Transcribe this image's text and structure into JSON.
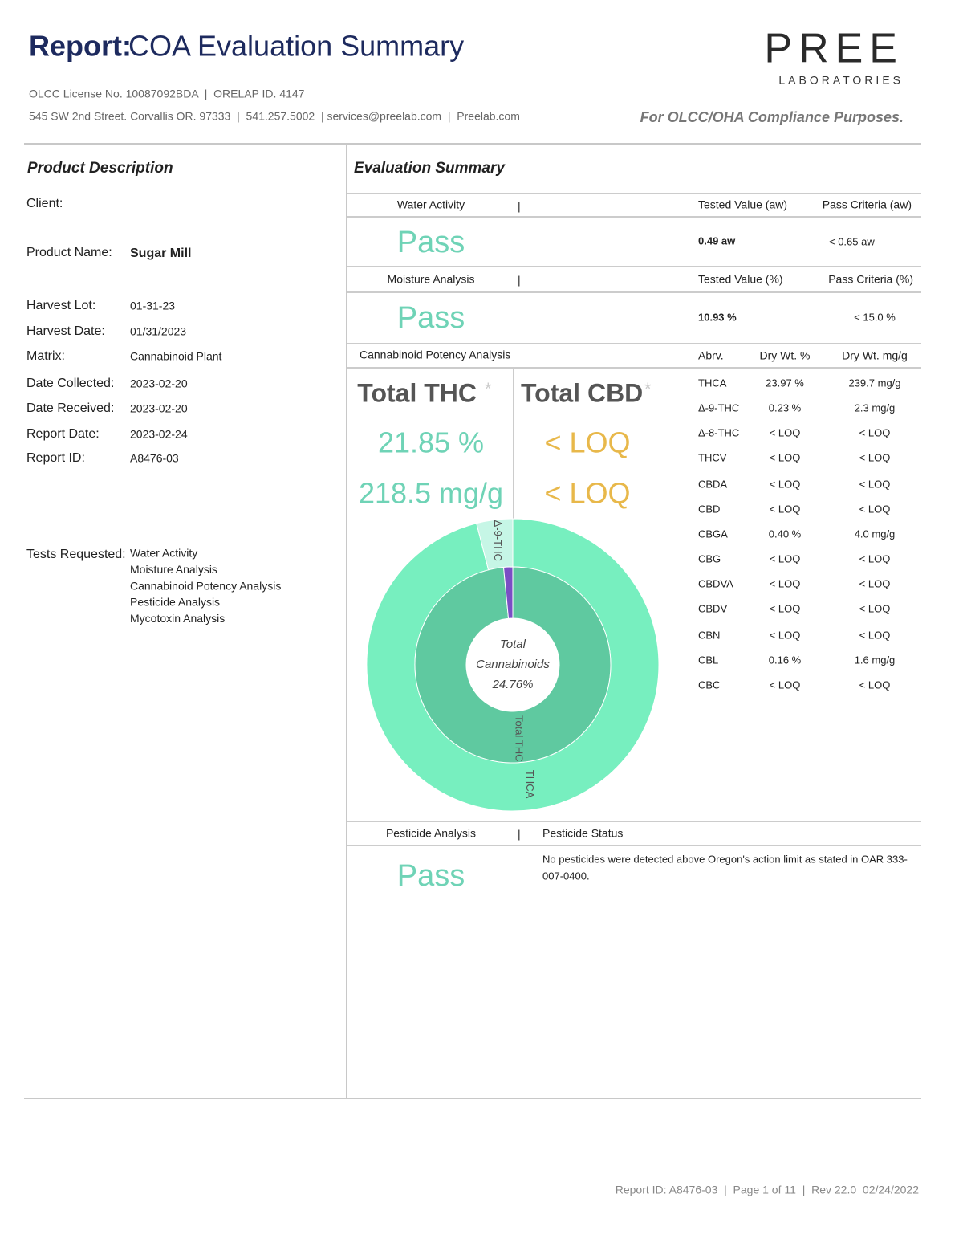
{
  "header": {
    "title_bold": "Report:",
    "title": "COA Evaluation Summary",
    "license_line": "OLCC License No. 10087092BDA  |  ORELAP ID. 4147",
    "contact_line": "545 SW 2nd Street. Corvallis OR. 97333  |  541.257.5002  | services@preelab.com  |  Preelab.com",
    "logo": "PREE",
    "logo_sub": "LABORATORIES",
    "compliance": "For OLCC/OHA Compliance Purposes."
  },
  "product": {
    "title": "Product Description",
    "fields": [
      {
        "label": "Client:"
      },
      {
        "label": "Product Name:",
        "value": "Sugar Mill"
      },
      {
        "label": "Harvest Lot:",
        "value": "01-31-23"
      },
      {
        "label": "Harvest Date:",
        "value": "01/31/2023"
      },
      {
        "label": "Matrix:",
        "value": "Cannabinoid Plant"
      },
      {
        "label": "Date Collected:",
        "value": "2023-02-20"
      },
      {
        "label": "Date Received:",
        "value": "2023-02-20"
      },
      {
        "label": "Report Date:",
        "value": "2023-02-24"
      },
      {
        "label": "Report ID:",
        "value": "A8476-03"
      }
    ],
    "tests_label": "Tests Requested:",
    "tests": [
      "Water Activity",
      "Moisture Analysis",
      "Cannabinoid Potency Analysis",
      "Pesticide Analysis",
      "Mycotoxin Analysis"
    ]
  },
  "evaluation": {
    "title": "Evaluation Summary",
    "water": {
      "header": "Water Activity",
      "result": "Pass",
      "tested_header": "Tested Value (aw)",
      "criteria_header": "Pass Criteria (aw)",
      "tested": "0.49 aw",
      "criteria": "< 0.65 aw"
    },
    "moisture": {
      "header": "Moisture Analysis",
      "result": "Pass",
      "tested_header": "Tested Value (%)",
      "criteria_header": "Pass Criteria (%)",
      "tested": "10.93 %",
      "criteria": "< 15.0 %"
    },
    "potency": {
      "header": "Cannabinoid Potency Analysis",
      "columns": [
        "Abrv.",
        "Dry Wt. %",
        "Dry Wt. mg/g"
      ],
      "rows": [
        [
          "THCA",
          "23.97 %",
          "239.7 mg/g"
        ],
        [
          "Δ-9-THC",
          "0.23 %",
          "2.3 mg/g"
        ],
        [
          "Δ-8-THC",
          "< LOQ",
          "< LOQ"
        ],
        [
          "THCV",
          "< LOQ",
          "< LOQ"
        ],
        [
          "CBDA",
          "< LOQ",
          "< LOQ"
        ],
        [
          "CBD",
          "< LOQ",
          "< LOQ"
        ],
        [
          "CBGA",
          "0.40 %",
          "4.0 mg/g"
        ],
        [
          "CBG",
          "< LOQ",
          "< LOQ"
        ],
        [
          "CBDVA",
          "< LOQ",
          "< LOQ"
        ],
        [
          "CBDV",
          "< LOQ",
          "< LOQ"
        ],
        [
          "CBN",
          "< LOQ",
          "< LOQ"
        ],
        [
          "CBL",
          "0.16 %",
          "1.6 mg/g"
        ],
        [
          "CBC",
          "< LOQ",
          "< LOQ"
        ]
      ],
      "thc_label": "Total THC",
      "cbd_label": "Total CBD",
      "asterisk": "*",
      "thc_pct": "21.85 %",
      "thc_mg": "218.5 mg/g",
      "cbd_pct": "< LOQ",
      "cbd_mg": "< LOQ"
    },
    "pesticide": {
      "header": "Pesticide Analysis",
      "status_header": "Pesticide Status",
      "result": "Pass",
      "status": [
        "No pesticides were detected above Oregon's action limit as stated in OAR 333-",
        "007-0400."
      ]
    }
  },
  "chart_data": {
    "type": "donut",
    "center_label": [
      "Total",
      "Cannabinoids",
      "24.76%"
    ],
    "rings": [
      {
        "labels": [
          "THCA",
          "Δ-9-THC"
        ],
        "values": [
          96,
          4
        ],
        "colors": [
          "#77efbf",
          "#c6f6e6"
        ]
      },
      {
        "labels": [
          "Total THC",
          null
        ],
        "values": [
          98.5,
          1.5
        ],
        "colors": [
          "#5fc9a0",
          "#7a4fc4"
        ]
      }
    ]
  },
  "footer": "Report ID: A8476-03  |  Page 1 of 11  |  Rev 22.0  02/24/2022"
}
